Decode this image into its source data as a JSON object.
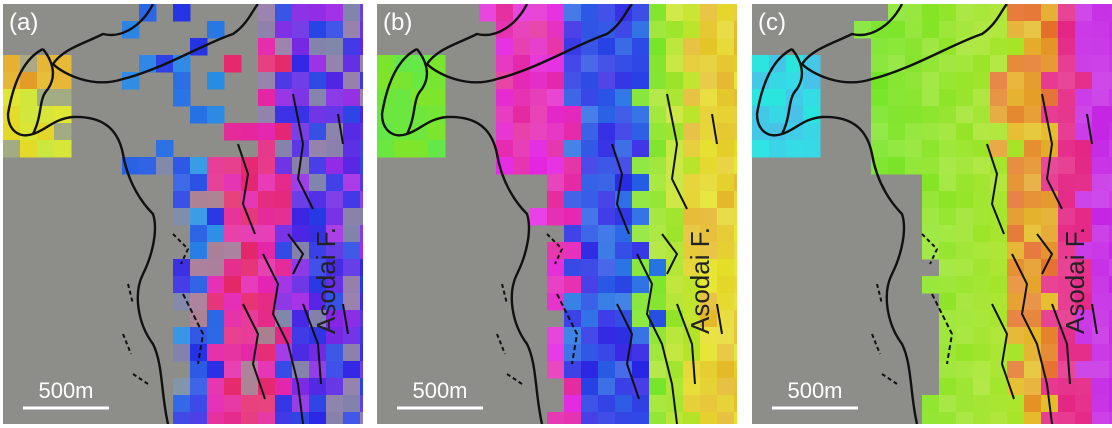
{
  "panels": [
    {
      "label": "(a)",
      "fault_label": "Asodai F.",
      "scale_label": "500m"
    },
    {
      "label": "(b)",
      "fault_label": "Asodai F.",
      "scale_label": "500m"
    },
    {
      "label": "(c)",
      "fault_label": "Asodai F.",
      "scale_label": "500m"
    }
  ]
}
